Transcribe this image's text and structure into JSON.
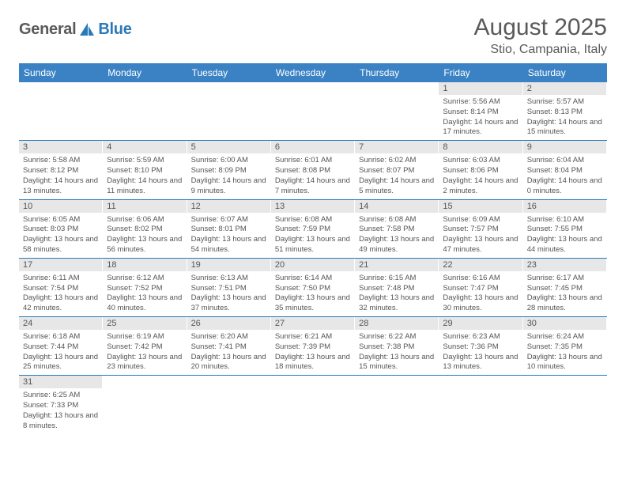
{
  "logo": {
    "text1": "General",
    "text2": "Blue"
  },
  "title": "August 2025",
  "subtitle": "Stio, Campania, Italy",
  "weekdays": [
    "Sunday",
    "Monday",
    "Tuesday",
    "Wednesday",
    "Thursday",
    "Friday",
    "Saturday"
  ],
  "colors": {
    "headerBg": "#3a82c4",
    "rowBorder": "#2a7ab8",
    "dayNumBg": "#e7e7e7"
  },
  "grid": [
    [
      {
        "empty": true
      },
      {
        "empty": true
      },
      {
        "empty": true
      },
      {
        "empty": true
      },
      {
        "empty": true
      },
      {
        "num": "1",
        "sunrise": "Sunrise: 5:56 AM",
        "sunset": "Sunset: 8:14 PM",
        "daylight": "Daylight: 14 hours and 17 minutes."
      },
      {
        "num": "2",
        "sunrise": "Sunrise: 5:57 AM",
        "sunset": "Sunset: 8:13 PM",
        "daylight": "Daylight: 14 hours and 15 minutes."
      }
    ],
    [
      {
        "num": "3",
        "sunrise": "Sunrise: 5:58 AM",
        "sunset": "Sunset: 8:12 PM",
        "daylight": "Daylight: 14 hours and 13 minutes."
      },
      {
        "num": "4",
        "sunrise": "Sunrise: 5:59 AM",
        "sunset": "Sunset: 8:10 PM",
        "daylight": "Daylight: 14 hours and 11 minutes."
      },
      {
        "num": "5",
        "sunrise": "Sunrise: 6:00 AM",
        "sunset": "Sunset: 8:09 PM",
        "daylight": "Daylight: 14 hours and 9 minutes."
      },
      {
        "num": "6",
        "sunrise": "Sunrise: 6:01 AM",
        "sunset": "Sunset: 8:08 PM",
        "daylight": "Daylight: 14 hours and 7 minutes."
      },
      {
        "num": "7",
        "sunrise": "Sunrise: 6:02 AM",
        "sunset": "Sunset: 8:07 PM",
        "daylight": "Daylight: 14 hours and 5 minutes."
      },
      {
        "num": "8",
        "sunrise": "Sunrise: 6:03 AM",
        "sunset": "Sunset: 8:06 PM",
        "daylight": "Daylight: 14 hours and 2 minutes."
      },
      {
        "num": "9",
        "sunrise": "Sunrise: 6:04 AM",
        "sunset": "Sunset: 8:04 PM",
        "daylight": "Daylight: 14 hours and 0 minutes."
      }
    ],
    [
      {
        "num": "10",
        "sunrise": "Sunrise: 6:05 AM",
        "sunset": "Sunset: 8:03 PM",
        "daylight": "Daylight: 13 hours and 58 minutes."
      },
      {
        "num": "11",
        "sunrise": "Sunrise: 6:06 AM",
        "sunset": "Sunset: 8:02 PM",
        "daylight": "Daylight: 13 hours and 56 minutes."
      },
      {
        "num": "12",
        "sunrise": "Sunrise: 6:07 AM",
        "sunset": "Sunset: 8:01 PM",
        "daylight": "Daylight: 13 hours and 54 minutes."
      },
      {
        "num": "13",
        "sunrise": "Sunrise: 6:08 AM",
        "sunset": "Sunset: 7:59 PM",
        "daylight": "Daylight: 13 hours and 51 minutes."
      },
      {
        "num": "14",
        "sunrise": "Sunrise: 6:08 AM",
        "sunset": "Sunset: 7:58 PM",
        "daylight": "Daylight: 13 hours and 49 minutes."
      },
      {
        "num": "15",
        "sunrise": "Sunrise: 6:09 AM",
        "sunset": "Sunset: 7:57 PM",
        "daylight": "Daylight: 13 hours and 47 minutes."
      },
      {
        "num": "16",
        "sunrise": "Sunrise: 6:10 AM",
        "sunset": "Sunset: 7:55 PM",
        "daylight": "Daylight: 13 hours and 44 minutes."
      }
    ],
    [
      {
        "num": "17",
        "sunrise": "Sunrise: 6:11 AM",
        "sunset": "Sunset: 7:54 PM",
        "daylight": "Daylight: 13 hours and 42 minutes."
      },
      {
        "num": "18",
        "sunrise": "Sunrise: 6:12 AM",
        "sunset": "Sunset: 7:52 PM",
        "daylight": "Daylight: 13 hours and 40 minutes."
      },
      {
        "num": "19",
        "sunrise": "Sunrise: 6:13 AM",
        "sunset": "Sunset: 7:51 PM",
        "daylight": "Daylight: 13 hours and 37 minutes."
      },
      {
        "num": "20",
        "sunrise": "Sunrise: 6:14 AM",
        "sunset": "Sunset: 7:50 PM",
        "daylight": "Daylight: 13 hours and 35 minutes."
      },
      {
        "num": "21",
        "sunrise": "Sunrise: 6:15 AM",
        "sunset": "Sunset: 7:48 PM",
        "daylight": "Daylight: 13 hours and 32 minutes."
      },
      {
        "num": "22",
        "sunrise": "Sunrise: 6:16 AM",
        "sunset": "Sunset: 7:47 PM",
        "daylight": "Daylight: 13 hours and 30 minutes."
      },
      {
        "num": "23",
        "sunrise": "Sunrise: 6:17 AM",
        "sunset": "Sunset: 7:45 PM",
        "daylight": "Daylight: 13 hours and 28 minutes."
      }
    ],
    [
      {
        "num": "24",
        "sunrise": "Sunrise: 6:18 AM",
        "sunset": "Sunset: 7:44 PM",
        "daylight": "Daylight: 13 hours and 25 minutes."
      },
      {
        "num": "25",
        "sunrise": "Sunrise: 6:19 AM",
        "sunset": "Sunset: 7:42 PM",
        "daylight": "Daylight: 13 hours and 23 minutes."
      },
      {
        "num": "26",
        "sunrise": "Sunrise: 6:20 AM",
        "sunset": "Sunset: 7:41 PM",
        "daylight": "Daylight: 13 hours and 20 minutes."
      },
      {
        "num": "27",
        "sunrise": "Sunrise: 6:21 AM",
        "sunset": "Sunset: 7:39 PM",
        "daylight": "Daylight: 13 hours and 18 minutes."
      },
      {
        "num": "28",
        "sunrise": "Sunrise: 6:22 AM",
        "sunset": "Sunset: 7:38 PM",
        "daylight": "Daylight: 13 hours and 15 minutes."
      },
      {
        "num": "29",
        "sunrise": "Sunrise: 6:23 AM",
        "sunset": "Sunset: 7:36 PM",
        "daylight": "Daylight: 13 hours and 13 minutes."
      },
      {
        "num": "30",
        "sunrise": "Sunrise: 6:24 AM",
        "sunset": "Sunset: 7:35 PM",
        "daylight": "Daylight: 13 hours and 10 minutes."
      }
    ],
    [
      {
        "num": "31",
        "sunrise": "Sunrise: 6:25 AM",
        "sunset": "Sunset: 7:33 PM",
        "daylight": "Daylight: 13 hours and 8 minutes."
      },
      {
        "empty": true
      },
      {
        "empty": true
      },
      {
        "empty": true
      },
      {
        "empty": true
      },
      {
        "empty": true
      },
      {
        "empty": true
      }
    ]
  ]
}
